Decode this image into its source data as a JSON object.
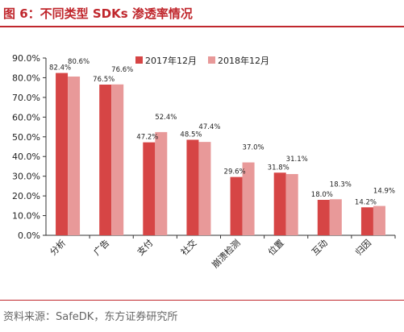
{
  "figure": {
    "title": "图 6：不同类型 SDKs 渗透率情况",
    "source": "资料来源：SafeDK，东方证券研究所"
  },
  "chart_data": {
    "type": "bar",
    "categories": [
      "分析",
      "广告",
      "支付",
      "社交",
      "崩溃检测",
      "位置",
      "互动",
      "归因"
    ],
    "series": [
      {
        "name": "2017年12月",
        "color": "#d64545",
        "values": [
          82.4,
          76.5,
          47.2,
          48.5,
          29.6,
          31.8,
          18.0,
          14.2
        ]
      },
      {
        "name": "2018年12月",
        "color": "#e89999",
        "values": [
          80.6,
          76.6,
          52.4,
          47.4,
          37.0,
          31.1,
          18.3,
          14.9
        ]
      }
    ],
    "labels": [
      [
        "82.4%",
        "76.5%",
        "47.2%",
        "48.5%",
        "29.6%",
        "31.8%",
        "18.0%",
        "14.2%"
      ],
      [
        "80.6%",
        "76.6%",
        "52.4%",
        "47.4%",
        "37.0%",
        "31.1%",
        "18.3%",
        "14.9%"
      ]
    ],
    "ylim": [
      0,
      90
    ],
    "yticks": [
      0,
      10,
      20,
      30,
      40,
      50,
      60,
      70,
      80,
      90
    ],
    "ytick_labels": [
      "0.0%",
      "10.0%",
      "20.0%",
      "30.0%",
      "40.0%",
      "50.0%",
      "60.0%",
      "70.0%",
      "80.0%",
      "90.0%"
    ],
    "legend_position": "top-center",
    "grid": false
  }
}
